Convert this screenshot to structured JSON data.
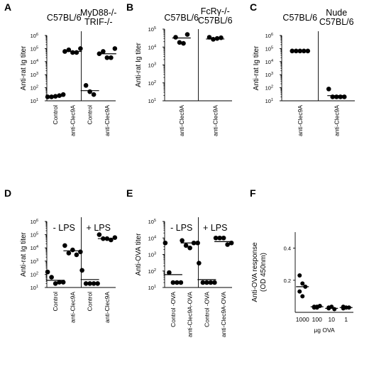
{
  "chart_data": [
    {
      "id": "A",
      "type": "scatter",
      "scale": "log",
      "ylim": [
        10,
        1000000
      ],
      "ylabel": "Anti-rat Ig titer",
      "groups": [
        {
          "title": [
            "C57BL/6"
          ],
          "categories": [
            "Control",
            "anti-Clec9A"
          ],
          "points": [
            [
              20,
              20,
              22,
              25,
              30
            ],
            [
              60000,
              80000,
              50000,
              50000,
              100000
            ]
          ],
          "medians": [
            22,
            60000
          ]
        },
        {
          "title": [
            "MyD88-/-",
            "TRIF-/-"
          ],
          "categories": [
            "Control",
            "anti-Clec9A"
          ],
          "points": [
            [
              150,
              50,
              30
            ],
            [
              40000,
              60000,
              20000,
              20000,
              100000
            ]
          ],
          "medians": [
            60,
            40000
          ]
        }
      ]
    },
    {
      "id": "B",
      "type": "scatter",
      "scale": "log",
      "ylim": [
        10,
        100000
      ],
      "ylabel": "Anti-rat Ig titer",
      "groups": [
        {
          "title": [
            "C57BL/6"
          ],
          "categories": [
            "anti-Clec9A"
          ],
          "points": [
            [
              35000,
              18000,
              16000,
              50000
            ]
          ],
          "medians": [
            32000
          ]
        },
        {
          "title": [
            "FcRγ-/-",
            "C57BL/6"
          ],
          "categories": [
            "anti-Clec9A"
          ],
          "points": [
            [
              35000,
              27000,
              30000,
              33000
            ]
          ],
          "medians": [
            28000
          ]
        }
      ]
    },
    {
      "id": "C",
      "type": "scatter",
      "scale": "log",
      "ylim": [
        10,
        1000000
      ],
      "ylabel": "Anti-rat Ig titer",
      "groups": [
        {
          "title": [
            "C57BL/6"
          ],
          "categories": [
            "anti-Clec9A"
          ],
          "points": [
            [
              65000,
              65000,
              65000,
              65000,
              65000
            ]
          ],
          "medians": [
            65000
          ]
        },
        {
          "title": [
            "Nude",
            "C57BL/6"
          ],
          "categories": [
            "anti-Clec9A"
          ],
          "points": [
            [
              80,
              20,
              20,
              20,
              20
            ]
          ],
          "medians": [
            25
          ]
        }
      ]
    },
    {
      "id": "D",
      "type": "scatter",
      "scale": "log",
      "ylim": [
        10,
        1000000
      ],
      "ylabel": "Anti-rat Ig titer",
      "groups": [
        {
          "title": [
            "- LPS"
          ],
          "categories": [
            "Control",
            "anti-Clec9A"
          ],
          "points": [
            [
              150,
              60,
              20,
              25,
              25
            ],
            [
              15000,
              4000,
              7000,
              3000,
              5000
            ]
          ],
          "medians": [
            35,
            6000
          ]
        },
        {
          "title": [
            "+ LPS"
          ],
          "categories": [
            "Control",
            "anti-Clec9A"
          ],
          "points": [
            [
              200,
              20,
              20,
              20,
              20
            ],
            [
              100000,
              50000,
              50000,
              40000,
              60000
            ]
          ],
          "medians": [
            40,
            50000
          ]
        }
      ]
    },
    {
      "id": "E",
      "type": "scatter",
      "scale": "log",
      "ylim": [
        10,
        100000
      ],
      "ylabel": "Anti-OVA titer",
      "groups": [
        {
          "title": [
            "- LPS"
          ],
          "categories": [
            "Control -OVA",
            "anti-Clec9A-OVA"
          ],
          "points": [
            [
              5000,
              80,
              20,
              20,
              20
            ],
            [
              7000,
              3500,
              2500,
              5000,
              5000
            ]
          ],
          "medians": [
            60,
            5000
          ]
        },
        {
          "title": [
            "+ LPS"
          ],
          "categories": [
            "Control -OVA",
            "anti-Clec9A-OVA"
          ],
          "points": [
            [
              300,
              20,
              20,
              20,
              20
            ],
            [
              10000,
              10000,
              10000,
              4000,
              5000
            ]
          ],
          "medians": [
            30,
            6000
          ]
        }
      ]
    },
    {
      "id": "F",
      "type": "scatter",
      "scale": "linear",
      "ylim": [
        0,
        0.5
      ],
      "ylabel": [
        "Anti-OVA response",
        "(OD 450nm)"
      ],
      "xlabel": "μg OVA",
      "yticks": [
        "0.2",
        "0.4"
      ],
      "categories": [
        "1000",
        "100",
        "10",
        "1"
      ],
      "points": [
        [
          0.23,
          0.18,
          0.16,
          0.13,
          0.1
        ],
        [
          0.03,
          0.035,
          0.04,
          0.035,
          0.03
        ],
        [
          0.03,
          0.035,
          0.02,
          0.025
        ],
        [
          0.035,
          0.03,
          0.03,
          0.025
        ]
      ],
      "medians": [
        0.16,
        0.035,
        0.025,
        0.03
      ]
    }
  ]
}
